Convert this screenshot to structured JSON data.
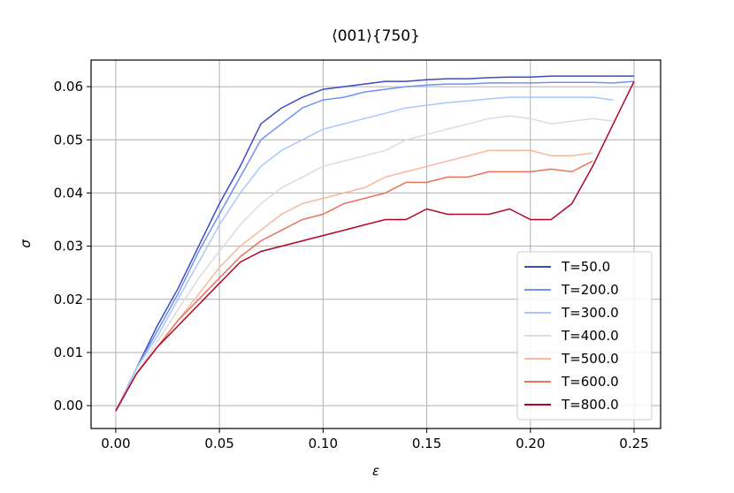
{
  "chart_data": {
    "type": "line",
    "title": "⟨001⟩{750}",
    "x_label": "ε",
    "y_label": "σ",
    "x": [
      0,
      0.01,
      0.02,
      0.03,
      0.04,
      0.05,
      0.06,
      0.07,
      0.08,
      0.09,
      0.1,
      0.11,
      0.12,
      0.13,
      0.14,
      0.15,
      0.16,
      0.17,
      0.18,
      0.19,
      0.2,
      0.21,
      0.22,
      0.23,
      0.24,
      0.25
    ],
    "series": [
      {
        "name": "T=50.0",
        "color": "#3b4cc0",
        "values": [
          -0.001,
          0.007,
          0.015,
          0.022,
          0.03,
          0.038,
          0.045,
          0.053,
          0.056,
          0.058,
          0.0595,
          0.06,
          0.0605,
          0.061,
          0.061,
          0.0613,
          0.0615,
          0.0615,
          0.0617,
          0.0618,
          0.0618,
          0.062,
          0.062,
          0.062,
          0.062,
          0.062
        ]
      },
      {
        "name": "T=200.0",
        "color": "#6f92f3",
        "values": [
          -0.001,
          0.007,
          0.014,
          0.021,
          0.029,
          0.036,
          0.043,
          0.05,
          0.053,
          0.056,
          0.0575,
          0.058,
          0.059,
          0.0595,
          0.06,
          0.0603,
          0.0605,
          0.0605,
          0.0607,
          0.0607,
          0.0607,
          0.0608,
          0.0608,
          0.0608,
          0.0607,
          0.061
        ]
      },
      {
        "name": "T=300.0",
        "color": "#aac7fd",
        "values": [
          -0.001,
          0.007,
          0.013,
          0.02,
          0.027,
          0.034,
          0.04,
          0.045,
          0.048,
          0.05,
          0.052,
          0.053,
          0.054,
          0.055,
          0.056,
          0.0565,
          0.057,
          0.0573,
          0.0577,
          0.058,
          0.058,
          0.058,
          0.058,
          0.058,
          0.0575,
          null
        ]
      },
      {
        "name": "T=400.0",
        "color": "#dddcdc",
        "values": [
          -0.001,
          0.006,
          0.012,
          0.018,
          0.024,
          0.029,
          0.034,
          0.038,
          0.041,
          0.043,
          0.045,
          0.046,
          0.047,
          0.048,
          0.05,
          0.051,
          0.052,
          0.053,
          0.054,
          0.0545,
          0.054,
          0.053,
          0.0535,
          0.054,
          0.0535,
          null
        ]
      },
      {
        "name": "T=500.0",
        "color": "#f7b89c",
        "values": [
          -0.001,
          0.006,
          0.011,
          0.016,
          0.021,
          0.026,
          0.03,
          0.033,
          0.036,
          0.038,
          0.039,
          0.04,
          0.041,
          0.043,
          0.044,
          0.045,
          0.046,
          0.047,
          0.048,
          0.048,
          0.048,
          0.047,
          0.047,
          0.0475,
          null,
          null
        ]
      },
      {
        "name": "T=600.0",
        "color": "#e7745b",
        "values": [
          -0.001,
          0.006,
          0.011,
          0.016,
          0.02,
          0.024,
          0.028,
          0.031,
          0.033,
          0.035,
          0.036,
          0.038,
          0.039,
          0.04,
          0.042,
          0.042,
          0.043,
          0.043,
          0.044,
          0.044,
          0.044,
          0.0445,
          0.044,
          0.046,
          null,
          null
        ]
      },
      {
        "name": "T=800.0",
        "color": "#b40426",
        "values": [
          -0.001,
          0.006,
          0.011,
          0.015,
          0.019,
          0.023,
          0.027,
          0.029,
          0.03,
          0.031,
          0.032,
          0.033,
          0.034,
          0.035,
          0.035,
          0.037,
          0.036,
          0.036,
          0.036,
          0.037,
          0.035,
          0.035,
          0.038,
          0.045,
          0.053,
          0.061
        ]
      }
    ],
    "xlim": [
      -0.0119,
      0.2628
    ],
    "ylim": [
      -0.0043,
      0.065
    ],
    "xticks": [
      {
        "value": 0,
        "label": "0.00"
      },
      0.05,
      {
        "value": 0.1,
        "label": "0.10"
      },
      0.15,
      {
        "value": 0.2,
        "label": "0.20"
      },
      0.25
    ],
    "yticks": [
      {
        "value": 0,
        "label": "0.00"
      },
      0.01,
      0.02,
      0.03,
      0.04,
      0.05,
      0.06
    ],
    "grid": true,
    "legend": "lower right"
  }
}
